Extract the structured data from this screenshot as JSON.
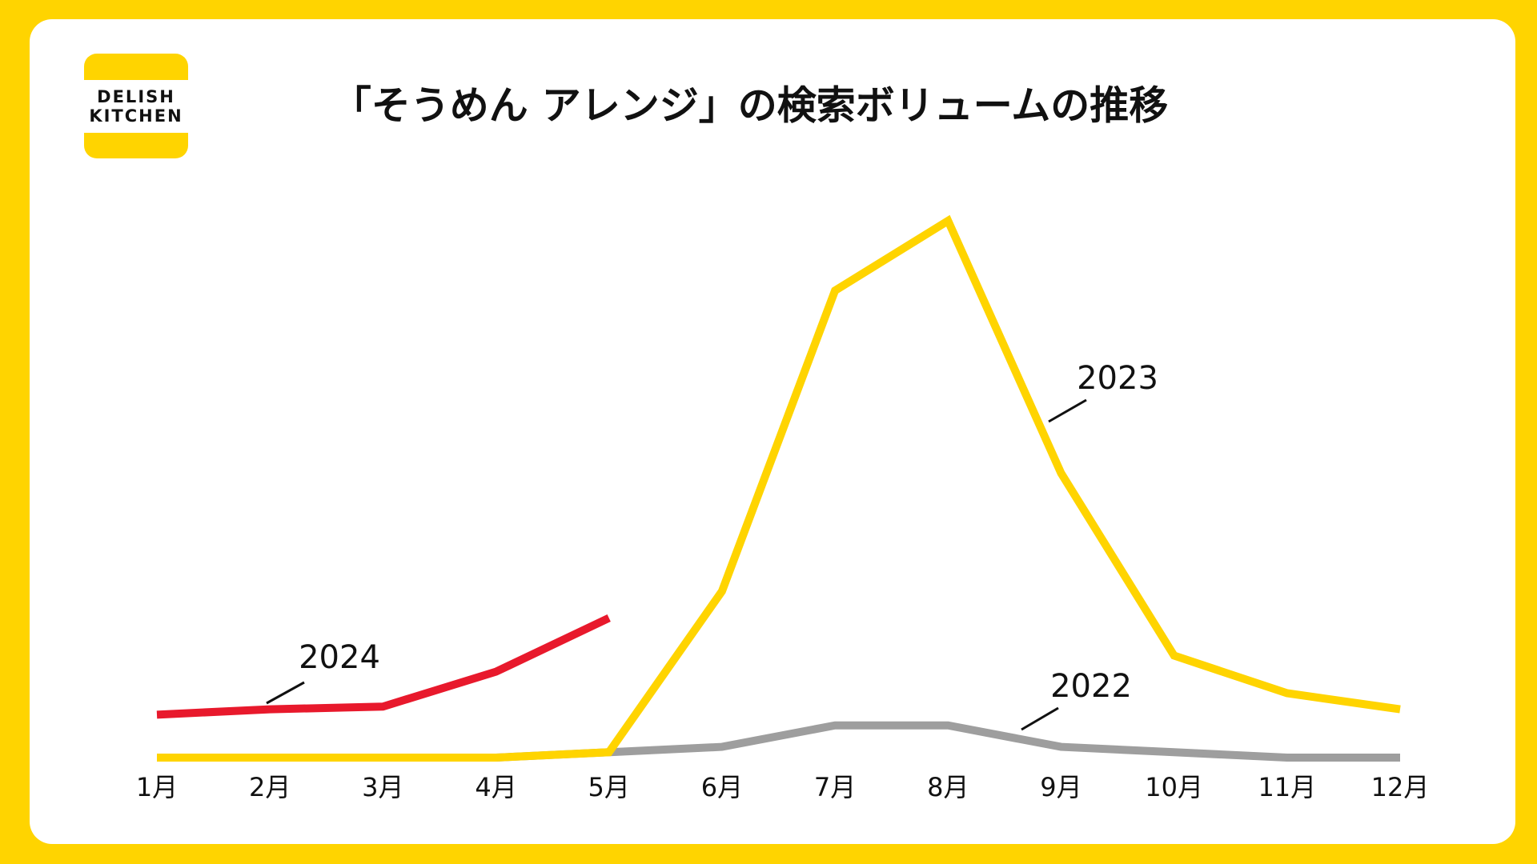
{
  "logo": [
    "DELISH",
    "KITCHEN"
  ],
  "chart_data": {
    "type": "line",
    "title": "「そうめん アレンジ」の検索ボリュームの推移",
    "categories": [
      "1月",
      "2月",
      "3月",
      "4月",
      "5月",
      "6月",
      "7月",
      "8月",
      "9月",
      "10月",
      "11月",
      "12月"
    ],
    "ylim": [
      0,
      100
    ],
    "series": [
      {
        "name": "2022",
        "color": "#9e9e9e",
        "values": [
          0,
          0,
          0,
          0,
          1,
          2,
          6,
          6,
          2,
          1,
          0,
          0
        ]
      },
      {
        "name": "2023",
        "color": "#FFD400",
        "values": [
          0,
          0,
          0,
          0,
          1,
          31,
          87,
          100,
          53,
          19,
          12,
          9
        ]
      },
      {
        "name": "2024",
        "color": "#E8192C",
        "values": [
          8,
          9,
          9.5,
          16,
          26,
          null,
          null,
          null,
          null,
          null,
          null,
          null
        ]
      }
    ]
  }
}
